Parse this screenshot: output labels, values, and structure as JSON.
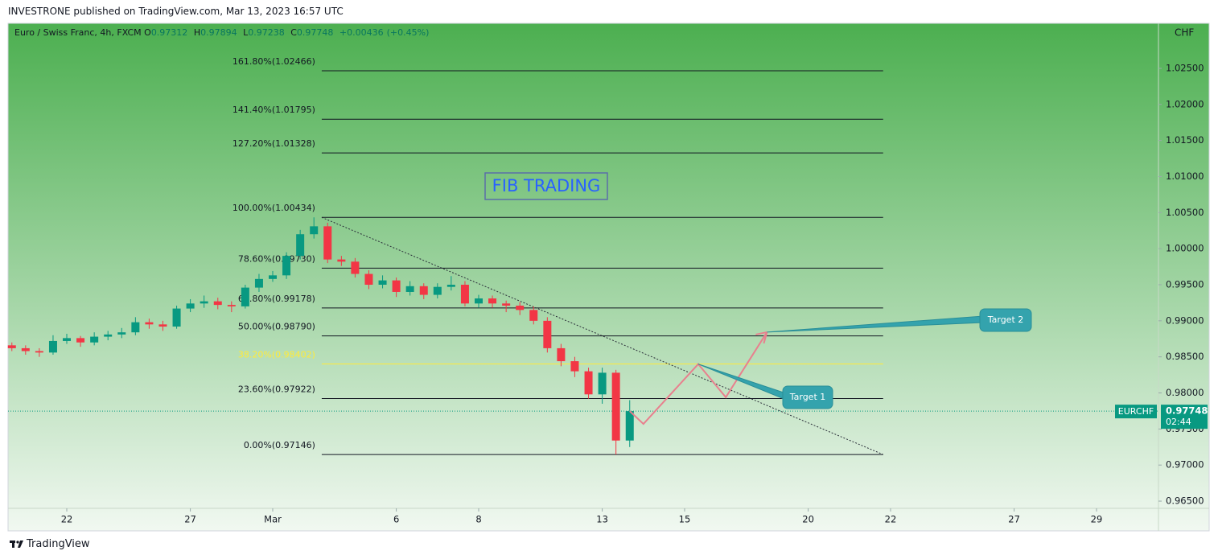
{
  "header": {
    "published": "INVESTRONE published on TradingView.com, Mar 13, 2023 16:57 UTC"
  },
  "legend": {
    "symbol": "Euro / Swiss Franc, 4h, FXCM",
    "open_label": "O",
    "open": 0.97312,
    "high_label": "H",
    "high": 0.97894,
    "low_label": "L",
    "low": 0.97238,
    "close_label": "C",
    "close": 0.97748,
    "change": "+0.00436",
    "change_pct": "(+0.45%)"
  },
  "chart_data": {
    "type": "candlestick",
    "currency": "CHF",
    "symbol": "EURCHF",
    "countdown": "02:44",
    "title_box": "FIB TRADING",
    "up_color": "#089981",
    "down_color": "#f23645",
    "x": [
      -1.333,
      -1,
      -0.667,
      -0.333,
      0,
      0.333,
      0.667,
      1,
      1.333,
      1.667,
      2,
      2.333,
      2.667,
      3,
      3.333,
      3.667,
      4,
      4.333,
      4.667,
      5,
      5.333,
      5.667,
      6,
      6.333,
      6.667,
      7,
      7.333,
      7.667,
      8,
      8.333,
      8.667,
      9,
      9.333,
      9.667,
      10,
      10.333,
      10.667,
      11,
      11.333,
      11.667,
      12,
      12.333,
      12.667,
      13,
      13.333,
      13.667
    ],
    "open": [
      0.9866,
      0.9862,
      0.9858,
      0.9856,
      0.9872,
      0.9876,
      0.987,
      0.9878,
      0.9881,
      0.9884,
      0.9898,
      0.9895,
      0.9892,
      0.9917,
      0.9924,
      0.9927,
      0.9922,
      0.992,
      0.9946,
      0.9958,
      0.9963,
      0.999,
      1.002,
      1.0031,
      0.9985,
      0.9982,
      0.9965,
      0.995,
      0.9956,
      0.994,
      0.9948,
      0.9936,
      0.9947,
      0.995,
      0.9924,
      0.9931,
      0.9924,
      0.9921,
      0.9915,
      0.99,
      0.9862,
      0.9844,
      0.983,
      0.9798,
      0.9828,
      0.9734
    ],
    "high": [
      0.987,
      0.9866,
      0.9862,
      0.988,
      0.9882,
      0.9879,
      0.9884,
      0.9886,
      0.989,
      0.9905,
      0.9903,
      0.99,
      0.9921,
      0.993,
      0.9935,
      0.9932,
      0.9927,
      0.995,
      0.9965,
      0.9969,
      0.9995,
      1.0026,
      1.00434,
      1.0036,
      0.999,
      0.9987,
      0.997,
      0.9963,
      0.996,
      0.9955,
      0.9952,
      0.9952,
      0.9962,
      0.9955,
      0.9936,
      0.9935,
      0.9928,
      0.9926,
      0.992,
      0.9905,
      0.9868,
      0.985,
      0.9835,
      0.9835,
      0.9832,
      0.979
    ],
    "low": [
      0.9858,
      0.9853,
      0.985,
      0.9853,
      0.9868,
      0.9864,
      0.9866,
      0.9873,
      0.9876,
      0.988,
      0.9889,
      0.9886,
      0.9889,
      0.9912,
      0.9918,
      0.9916,
      0.9912,
      0.9917,
      0.994,
      0.9954,
      0.9958,
      0.9985,
      1.0014,
      0.998,
      0.9976,
      0.996,
      0.9944,
      0.9945,
      0.9933,
      0.9935,
      0.993,
      0.9931,
      0.9942,
      0.992,
      0.9918,
      0.9918,
      0.9912,
      0.9908,
      0.9895,
      0.9856,
      0.9837,
      0.9822,
      0.9792,
      0.9785,
      0.97146,
      0.9725
    ],
    "close": [
      0.9862,
      0.9858,
      0.9856,
      0.9872,
      0.9876,
      0.987,
      0.9878,
      0.9881,
      0.9884,
      0.9898,
      0.9895,
      0.9892,
      0.9917,
      0.9924,
      0.9927,
      0.9922,
      0.992,
      0.9946,
      0.9958,
      0.9963,
      0.999,
      1.002,
      1.0031,
      0.9985,
      0.9982,
      0.9965,
      0.995,
      0.9956,
      0.994,
      0.9948,
      0.9936,
      0.9947,
      0.995,
      0.9924,
      0.9931,
      0.9924,
      0.9921,
      0.9915,
      0.99,
      0.9862,
      0.9844,
      0.983,
      0.9798,
      0.9828,
      0.9734,
      0.97748
    ],
    "xlim": [
      -1.426,
      26.504
    ],
    "ylim": [
      0.964,
      1.03113
    ],
    "xticks": [
      {
        "value": 0,
        "label": "22"
      },
      {
        "value": 3,
        "label": "27"
      },
      {
        "value": 5,
        "label": "Mar"
      },
      {
        "value": 8,
        "label": "6"
      },
      {
        "value": 10,
        "label": "8"
      },
      {
        "value": 13,
        "label": "13"
      },
      {
        "value": 15,
        "label": "15"
      },
      {
        "value": 18,
        "label": "20"
      },
      {
        "value": 20,
        "label": "22"
      },
      {
        "value": 23,
        "label": "27"
      },
      {
        "value": 25,
        "label": "29"
      }
    ],
    "yticks": [
      {
        "value": 0.965,
        "label": "0.96500"
      },
      {
        "value": 0.97,
        "label": "0.97000"
      },
      {
        "value": 0.975,
        "label": "0.97500"
      },
      {
        "value": 0.98,
        "label": "0.98000"
      },
      {
        "value": 0.985,
        "label": "0.98500"
      },
      {
        "value": 0.99,
        "label": "0.99000"
      },
      {
        "value": 0.995,
        "label": "0.99500"
      },
      {
        "value": 1.0,
        "label": "1.00000"
      },
      {
        "value": 1.005,
        "label": "1.00500"
      },
      {
        "value": 1.01,
        "label": "1.01000"
      },
      {
        "value": 1.015,
        "label": "1.01500"
      },
      {
        "value": 1.02,
        "label": "1.02000"
      },
      {
        "value": 1.025,
        "label": "1.02500"
      }
    ],
    "fib_range_x": [
      6.19,
      19.82
    ],
    "fib_levels": [
      {
        "value": 1.02466,
        "label": "161.80%(1.02466)",
        "color": "#131722"
      },
      {
        "value": 1.01795,
        "label": "141.40%(1.01795)",
        "color": "#131722"
      },
      {
        "value": 1.01328,
        "label": "127.20%(1.01328)",
        "color": "#131722"
      },
      {
        "value": 1.00434,
        "label": "100.00%(1.00434)",
        "color": "#131722"
      },
      {
        "value": 0.9973,
        "label": "78.60%(0.99730)",
        "color": "#131722"
      },
      {
        "value": 0.99178,
        "label": "61.80%(0.99178)",
        "color": "#131722"
      },
      {
        "value": 0.9879,
        "label": "50.00%(0.98790)",
        "color": "#131722"
      },
      {
        "value": 0.98402,
        "label": "38.20%(0.98402)",
        "color": "#ffeb3b"
      },
      {
        "value": 0.97922,
        "label": "23.60%(0.97922)",
        "color": "#131722"
      },
      {
        "value": 0.97146,
        "label": "0.00%(0.97146)",
        "color": "#131722"
      }
    ],
    "trendline": {
      "x": [
        6.19,
        19.82
      ],
      "y": [
        1.00434,
        0.97146
      ],
      "color": "#2a2e39"
    },
    "projection": {
      "x": [
        13.667,
        14.0,
        15.33,
        16.0,
        17.0
      ],
      "y": [
        0.97748,
        0.9757,
        0.984,
        0.9794,
        0.98843
      ],
      "color": "#e8808e"
    },
    "annotations": [
      {
        "text": "Target 1"
      },
      {
        "text": "Target 2"
      }
    ],
    "callout_color": "#34a3ad"
  },
  "footer": {
    "brand": "TradingView"
  }
}
